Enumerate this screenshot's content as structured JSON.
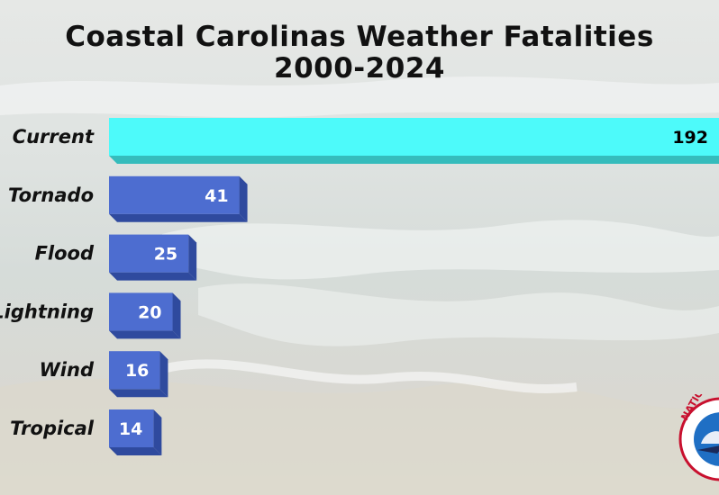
{
  "title": {
    "line1": "Coastal Carolinas Weather Fatalities",
    "line2": "2000-2024"
  },
  "chart_data": {
    "type": "bar",
    "orientation": "horizontal",
    "categories": [
      "Current",
      "Tornado",
      "Flood",
      "Lightning",
      "Wind",
      "Tropical"
    ],
    "values": [
      192,
      41,
      25,
      20,
      16,
      14
    ],
    "title": "Coastal Carolinas Weather Fatalities 2000-2024",
    "xlabel": "",
    "ylabel": "",
    "xlim": [
      0,
      192
    ],
    "grid": false,
    "legend": "none",
    "colors": {
      "highlight_bar": "#4dfafa",
      "highlight_side": "#35bcbc",
      "bar": "#4d6dd0",
      "bar_side": "#2f4a9e",
      "highlight_label": "#000000",
      "label": "#ffffff"
    }
  },
  "logo": {
    "name": "nws-logo",
    "text": "NATIONAL WEATHER SERVICE"
  }
}
